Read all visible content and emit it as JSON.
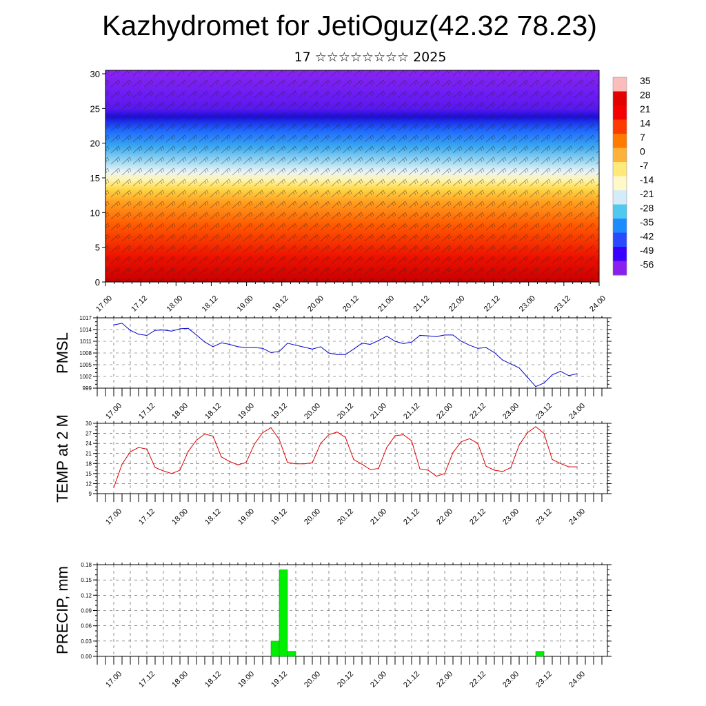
{
  "title": "Kazhydromet for JetiOguz(42.32 78.23)",
  "subtitle": "17 ☆☆☆☆☆☆☆☆ 2025",
  "time_labels": [
    "17.00",
    "17.12",
    "18.00",
    "18.12",
    "19.00",
    "19.12",
    "20.00",
    "20.12",
    "21.00",
    "21.12",
    "22.00",
    "22.12",
    "23.00",
    "23.12",
    "24.00"
  ],
  "chart_data": [
    {
      "type": "heatmap",
      "id": "temperature-cross-section",
      "title": "",
      "x_tick_labels": [
        "17.00",
        "17.12",
        "18.00",
        "18.12",
        "19.00",
        "19.12",
        "20.00",
        "20.12",
        "21.00",
        "21.12",
        "22.00",
        "22.12",
        "23.00",
        "23.12",
        "24.00"
      ],
      "y_tick_labels": [
        "0",
        "5",
        "10",
        "15",
        "20",
        "25",
        "30"
      ],
      "ylim": [
        0,
        30.5
      ],
      "colorbar_labels": [
        "35",
        "28",
        "21",
        "14",
        "7",
        "0",
        "-7",
        "-14",
        "-21",
        "-28",
        "-35",
        "-42",
        "-49",
        "-56"
      ],
      "colorbar_colors": [
        "#fcbcbc",
        "#e30000",
        "#f40000",
        "#ff3a00",
        "#ff7a00",
        "#ffb23a",
        "#ffe97a",
        "#fff8c8",
        "#d3ecf8",
        "#51c8f0",
        "#1a8cff",
        "#2a4aff",
        "#3a00ff",
        "#8a20f0"
      ],
      "wind_barbs": "yes"
    },
    {
      "type": "line",
      "id": "pmsl",
      "ylabel": "PMSL",
      "y_tick_labels": [
        "999",
        "1002",
        "1005",
        "1008",
        "1011",
        "1014",
        "1017"
      ],
      "ylim": [
        999,
        1017
      ],
      "color": "#0000cc",
      "x": [
        0,
        3,
        6,
        9,
        12,
        15,
        18,
        21,
        24,
        27,
        30,
        33,
        36,
        39,
        42,
        45,
        48,
        51,
        54,
        57,
        60,
        63,
        66,
        69,
        72,
        75,
        78,
        81,
        84,
        87,
        90,
        93,
        96,
        99,
        102,
        105,
        108,
        111,
        114,
        117,
        120,
        123,
        126,
        129,
        132,
        135,
        138,
        141,
        144,
        147,
        150,
        153,
        156,
        159,
        162,
        165,
        168
      ],
      "values": [
        1015.2,
        1015.6,
        1013.8,
        1012.8,
        1012.5,
        1013.8,
        1013.9,
        1013.6,
        1014.2,
        1014.3,
        1012.6,
        1010.8,
        1009.6,
        1010.6,
        1010.2,
        1009.6,
        1009.4,
        1009.4,
        1009.2,
        1008.1,
        1008.4,
        1010.5,
        1010.0,
        1009.5,
        1009.0,
        1009.6,
        1008.0,
        1007.6,
        1007.6,
        1009.0,
        1010.5,
        1010.2,
        1011.2,
        1012.3,
        1011.0,
        1010.4,
        1010.8,
        1012.5,
        1012.4,
        1012.2,
        1012.6,
        1012.6,
        1011.0,
        1010.0,
        1009.2,
        1009.4,
        1008.1,
        1006.2,
        1005.2,
        1004.2,
        1001.8,
        999.4,
        1000.3,
        1002.4,
        1003.3,
        1002.2,
        1002.7
      ]
    },
    {
      "type": "line",
      "id": "temp-2m",
      "ylabel": "TEMP at 2 M",
      "y_tick_labels": [
        "9",
        "12",
        "15",
        "18",
        "21",
        "24",
        "27",
        "30"
      ],
      "ylim": [
        9,
        30
      ],
      "color": "#dd0000",
      "x": [
        0,
        3,
        6,
        9,
        12,
        15,
        18,
        21,
        24,
        27,
        30,
        33,
        36,
        39,
        42,
        45,
        48,
        51,
        54,
        57,
        60,
        63,
        66,
        69,
        72,
        75,
        78,
        81,
        84,
        87,
        90,
        93,
        96,
        99,
        102,
        105,
        108,
        111,
        114,
        117,
        120,
        123,
        126,
        129,
        132,
        135,
        138,
        141,
        144,
        147,
        150,
        153,
        156,
        159,
        162,
        165,
        168
      ],
      "values": [
        10.8,
        17.8,
        21.5,
        22.8,
        22.3,
        16.8,
        15.8,
        15.0,
        16.0,
        21.6,
        25.0,
        26.8,
        26.2,
        20.0,
        18.6,
        17.6,
        18.3,
        23.8,
        27.2,
        28.7,
        25.2,
        18.3,
        17.9,
        17.9,
        18.2,
        24.0,
        26.6,
        27.4,
        25.8,
        19.2,
        17.8,
        16.2,
        16.5,
        22.8,
        26.3,
        26.6,
        24.8,
        16.4,
        16.0,
        14.2,
        15.0,
        21.3,
        24.5,
        25.4,
        24.0,
        17.2,
        16.0,
        15.6,
        16.8,
        23.5,
        27.2,
        29.0,
        27.0,
        19.2,
        18.0,
        17.0,
        17.0
      ]
    },
    {
      "type": "bar",
      "id": "precip",
      "ylabel": "PRECIP, mm",
      "y_tick_labels": [
        "0.00",
        "0.03",
        "0.06",
        "0.09",
        "0.12",
        "0.15",
        "0.18"
      ],
      "ylim": [
        0,
        0.18
      ],
      "color": "#00ee00",
      "bars": [
        {
          "x_start": 57,
          "x_end": 60,
          "value": 0.03
        },
        {
          "x_start": 60,
          "x_end": 63,
          "value": 0.17
        },
        {
          "x_start": 63,
          "x_end": 66,
          "value": 0.01
        },
        {
          "x_start": 153,
          "x_end": 156,
          "value": 0.01
        }
      ]
    }
  ]
}
